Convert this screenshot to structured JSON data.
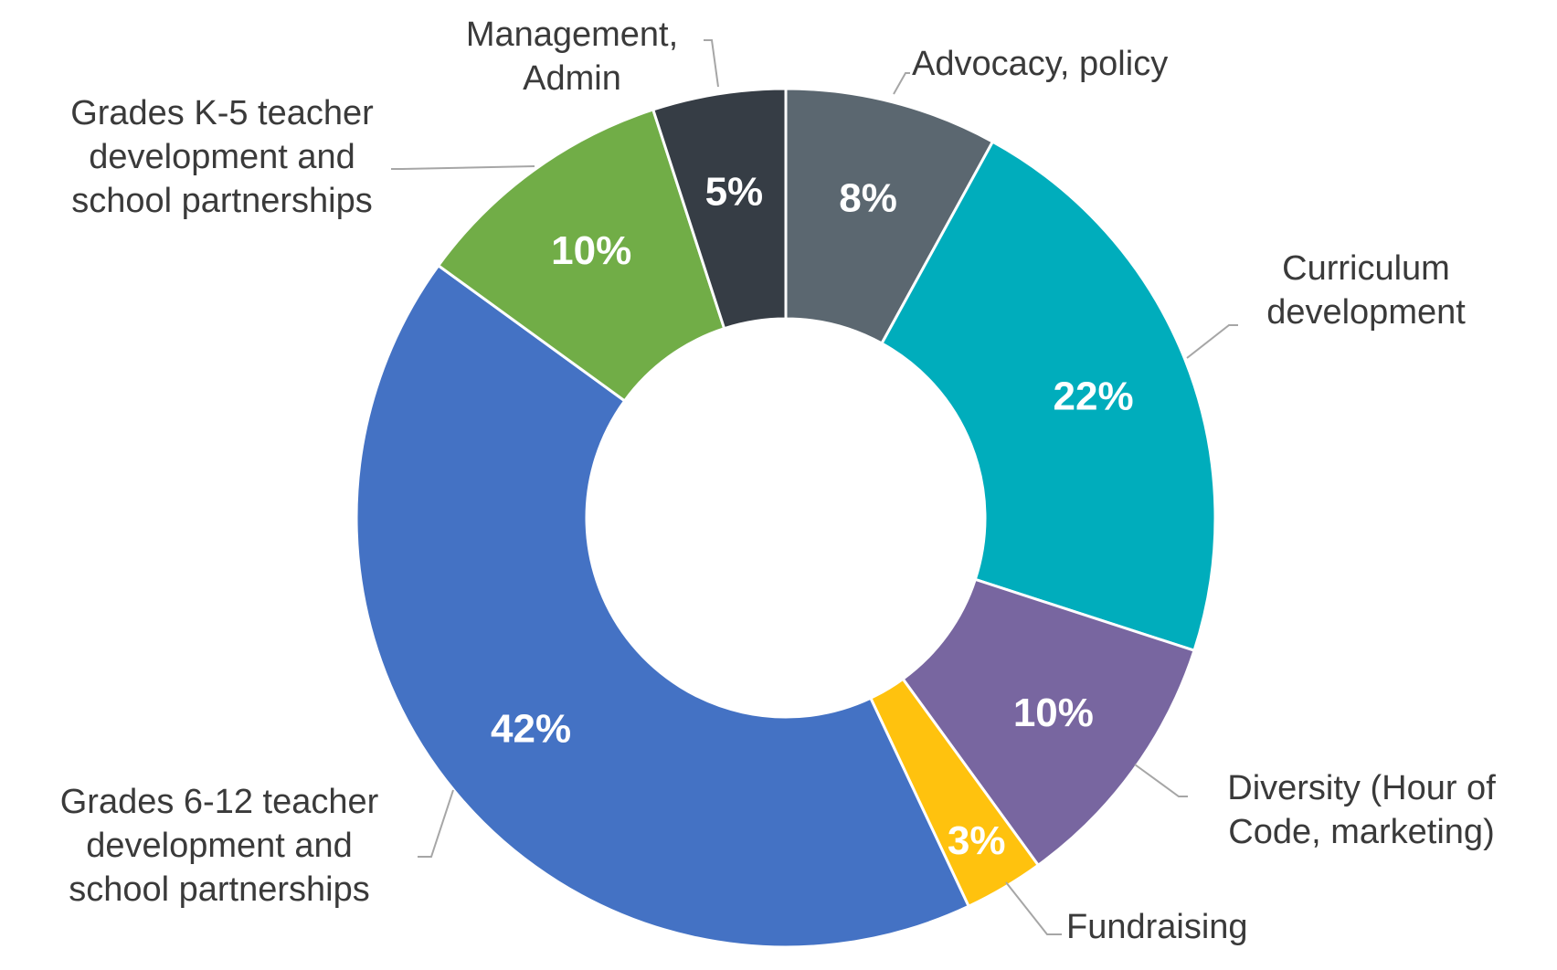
{
  "chart_data": {
    "type": "pie",
    "variant": "donut",
    "title": "",
    "legend": "none",
    "slices": [
      {
        "label": "Advocacy, policy",
        "value": 8,
        "value_label": "8%",
        "color": "#5b6770"
      },
      {
        "label": "Curriculum development",
        "value": 22,
        "value_label": "22%",
        "color": "#00adbc"
      },
      {
        "label": "Diversity (Hour of Code, marketing)",
        "value": 10,
        "value_label": "10%",
        "color": "#7866a0"
      },
      {
        "label": "Fundraising",
        "value": 3,
        "value_label": "3%",
        "color": "#ffc20e"
      },
      {
        "label": "Grades 6-12 teacher development and school partnerships",
        "value": 42,
        "value_label": "42%",
        "color": "#4472c4"
      },
      {
        "label": "Grades K-5 teacher development and school partnerships",
        "value": 10,
        "value_label": "10%",
        "color": "#71ad47"
      },
      {
        "label": "Management, Admin",
        "value": 5,
        "value_label": "5%",
        "color": "#363d45"
      }
    ]
  }
}
